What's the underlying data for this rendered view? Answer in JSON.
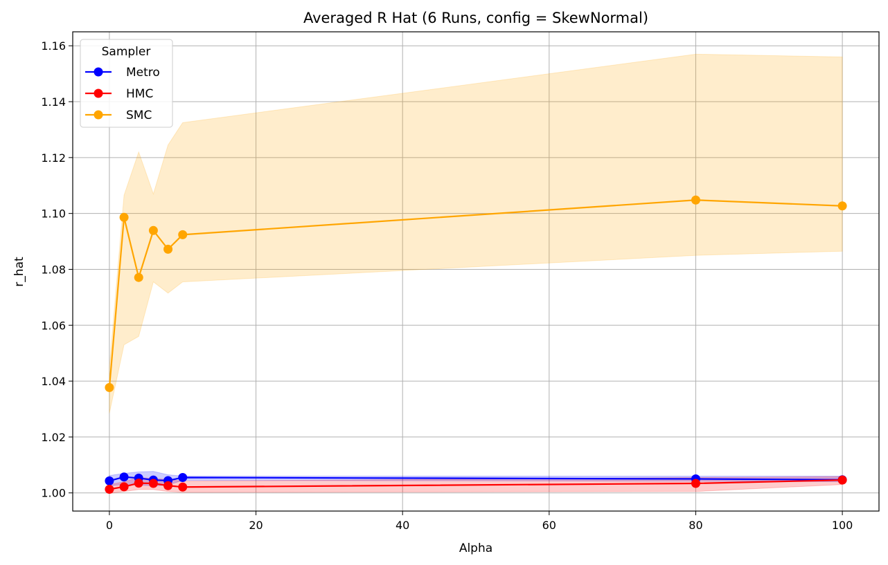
{
  "chart_data": {
    "type": "line",
    "title": "Averaged R Hat (6 Runs, config = SkewNormal)",
    "xlabel": "Alpha",
    "ylabel": "r_hat",
    "xlim": [
      -5,
      105
    ],
    "ylim": [
      0.9935,
      1.165
    ],
    "xticks": [
      0,
      20,
      40,
      60,
      80,
      100
    ],
    "yticks": [
      1.0,
      1.02,
      1.04,
      1.06,
      1.08,
      1.1,
      1.12,
      1.14,
      1.16
    ],
    "xtick_labels": [
      "0",
      "20",
      "40",
      "60",
      "80",
      "100"
    ],
    "ytick_labels": [
      "1.00",
      "1.02",
      "1.04",
      "1.06",
      "1.08",
      "1.10",
      "1.12",
      "1.14",
      "1.16"
    ],
    "grid": true,
    "legend": {
      "title": "Sampler",
      "placement": "top-left"
    },
    "x": [
      0,
      2,
      4,
      6,
      8,
      10,
      80,
      100
    ],
    "series": [
      {
        "name": "Metro",
        "color": "#0000ff",
        "values": [
          1.0043,
          1.0057,
          1.0053,
          1.0046,
          1.0044,
          1.0055,
          1.005,
          1.0047
        ],
        "lower": [
          1.0025,
          1.003,
          1.0028,
          1.0025,
          1.0028,
          1.0045,
          1.0042,
          1.004
        ],
        "upper": [
          1.0062,
          1.007,
          1.0075,
          1.0077,
          1.0065,
          1.006,
          1.006,
          1.006
        ]
      },
      {
        "name": "HMC",
        "color": "#ff0000",
        "values": [
          1.0013,
          1.0022,
          1.0035,
          1.0034,
          1.0026,
          1.0021,
          1.0034,
          1.0046
        ],
        "lower": [
          0.9998,
          1.0005,
          1.0012,
          1.0012,
          1.0005,
          1.0002,
          1.0005,
          1.003
        ],
        "upper": [
          1.003,
          1.004,
          1.0055,
          1.0052,
          1.0048,
          1.0042,
          1.0055,
          1.0058
        ]
      },
      {
        "name": "SMC",
        "color": "#ffa500",
        "values": [
          1.0377,
          1.0986,
          1.0771,
          1.0939,
          1.0872,
          1.0924,
          1.1048,
          1.1027
        ],
        "lower": [
          1.0285,
          1.053,
          1.056,
          1.0755,
          1.0715,
          1.0755,
          1.085,
          1.0865
        ],
        "upper": [
          1.045,
          1.1065,
          1.122,
          1.107,
          1.1245,
          1.1325,
          1.157,
          1.156
        ]
      }
    ]
  }
}
